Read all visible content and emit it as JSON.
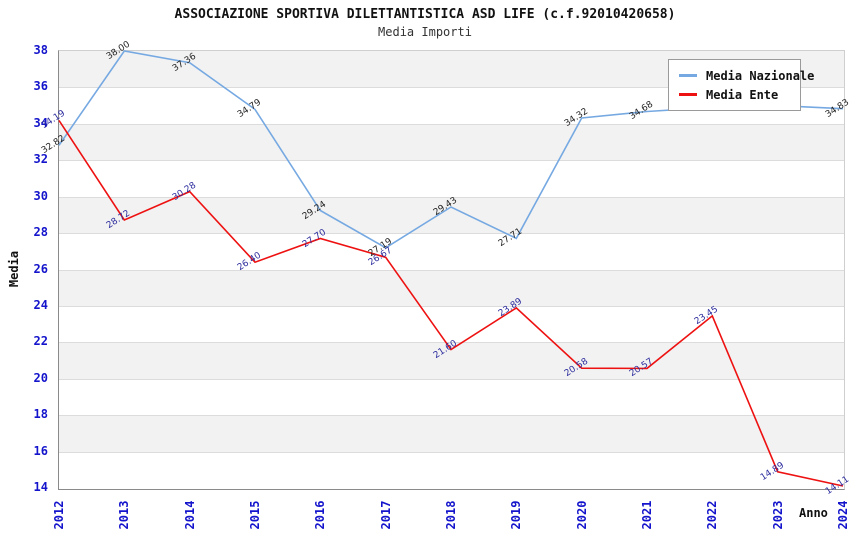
{
  "title": "ASSOCIAZIONE SPORTIVA DILETTANTISTICA ASD LIFE (c.f.92010420658)",
  "subtitle": "Media Importi",
  "legend": {
    "items": [
      {
        "label": "Media Nazionale",
        "color": "#76a9e2"
      },
      {
        "label": "Media Ente",
        "color": "#ee1111"
      }
    ]
  },
  "colors": {
    "axis_tick_label": "#1414cc",
    "grid_line": "#dcdcdc",
    "band_gray": "#f2f2f2",
    "band_white": "#ffffff",
    "title_text": "#111111",
    "nazionale_line": "#76a9e2",
    "ente_line": "#ee1111",
    "nazionale_value_label": "#222222",
    "ente_value_label": "#2b2b9e"
  },
  "chart_data": {
    "type": "line",
    "x": [
      "2012",
      "2013",
      "2014",
      "2015",
      "2016",
      "2017",
      "2018",
      "2019",
      "2020",
      "2021",
      "2022",
      "2023",
      "2024"
    ],
    "xlabel": "Anno",
    "ylabel": "Media",
    "ylim": [
      14,
      38
    ],
    "ytick_step": 2,
    "grid": true,
    "legend_position": "top-right",
    "alternating_bands": true,
    "series": [
      {
        "name": "Media Nazionale",
        "color": "#76a9e2",
        "label_color": "#222222",
        "values": [
          32.82,
          38.0,
          37.36,
          34.79,
          29.24,
          27.19,
          29.43,
          27.71,
          34.32,
          34.68,
          34.9,
          35.0,
          34.83
        ],
        "labels": [
          "32.82",
          "38.00",
          "37.36",
          "34.79",
          "29.24",
          "27.19",
          "29.43",
          "27.71",
          "34.32",
          "34.68",
          "",
          "",
          "34.83"
        ]
      },
      {
        "name": "Media Ente",
        "color": "#ee1111",
        "label_color": "#2b2b9e",
        "values": [
          34.19,
          28.72,
          30.28,
          26.4,
          27.7,
          26.67,
          21.6,
          23.89,
          20.58,
          20.57,
          23.45,
          14.89,
          14.11
        ],
        "labels": [
          "34.19",
          "28.72",
          "30.28",
          "26.40",
          "27.70",
          "26.67",
          "21.60",
          "23.89",
          "20.58",
          "20.57",
          "23.45",
          "14.89",
          "14.11"
        ]
      }
    ]
  }
}
